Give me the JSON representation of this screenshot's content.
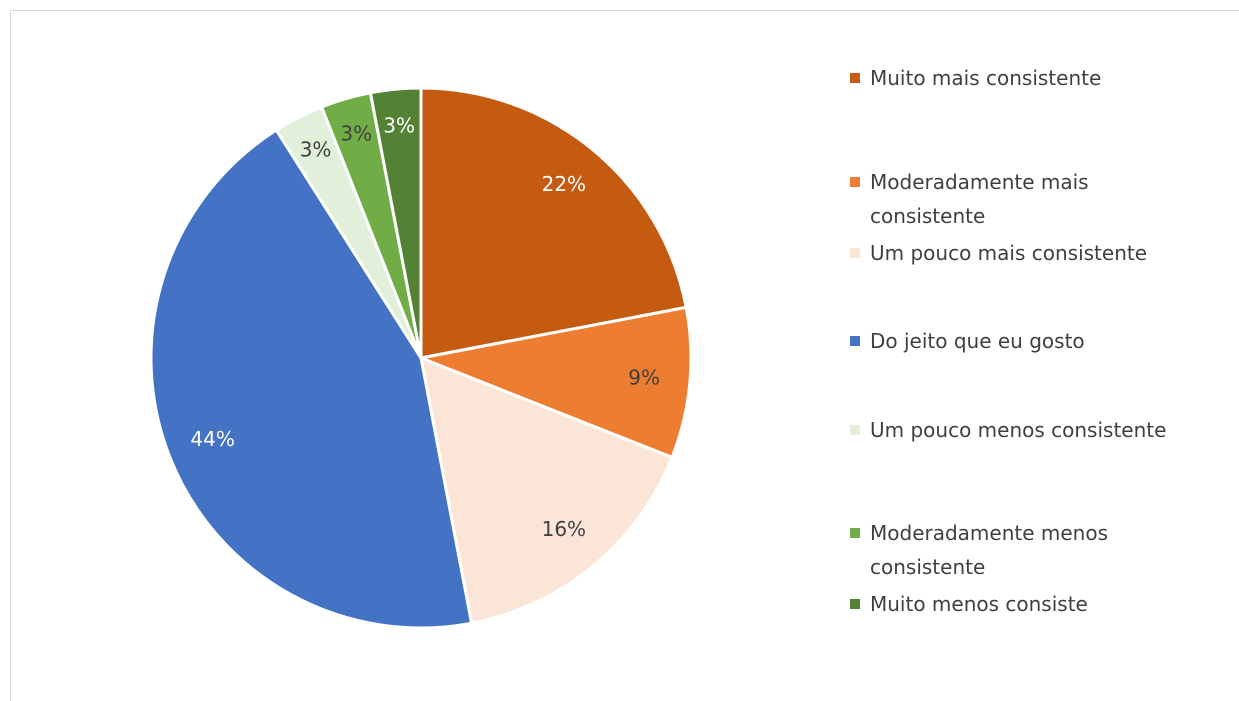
{
  "chart_data": {
    "type": "pie",
    "categories": [
      "Muito mais consistente",
      "Moderadamente mais consistente",
      "Um pouco mais consistente",
      "Do jeito que eu gosto",
      "Um pouco menos consistente",
      "Moderadamente menos consistente",
      "Muito menos consiste"
    ],
    "values": [
      22,
      9,
      16,
      44,
      3,
      3,
      3
    ],
    "value_labels": [
      "22%",
      "9%",
      "16%",
      "44%",
      "3%",
      "3%",
      "3%"
    ],
    "colors": [
      "#c55a11",
      "#ed7d31",
      "#fbe5d6",
      "#4472c4",
      "#e2efda",
      "#70ad47",
      "#548235"
    ],
    "legend": "right"
  }
}
